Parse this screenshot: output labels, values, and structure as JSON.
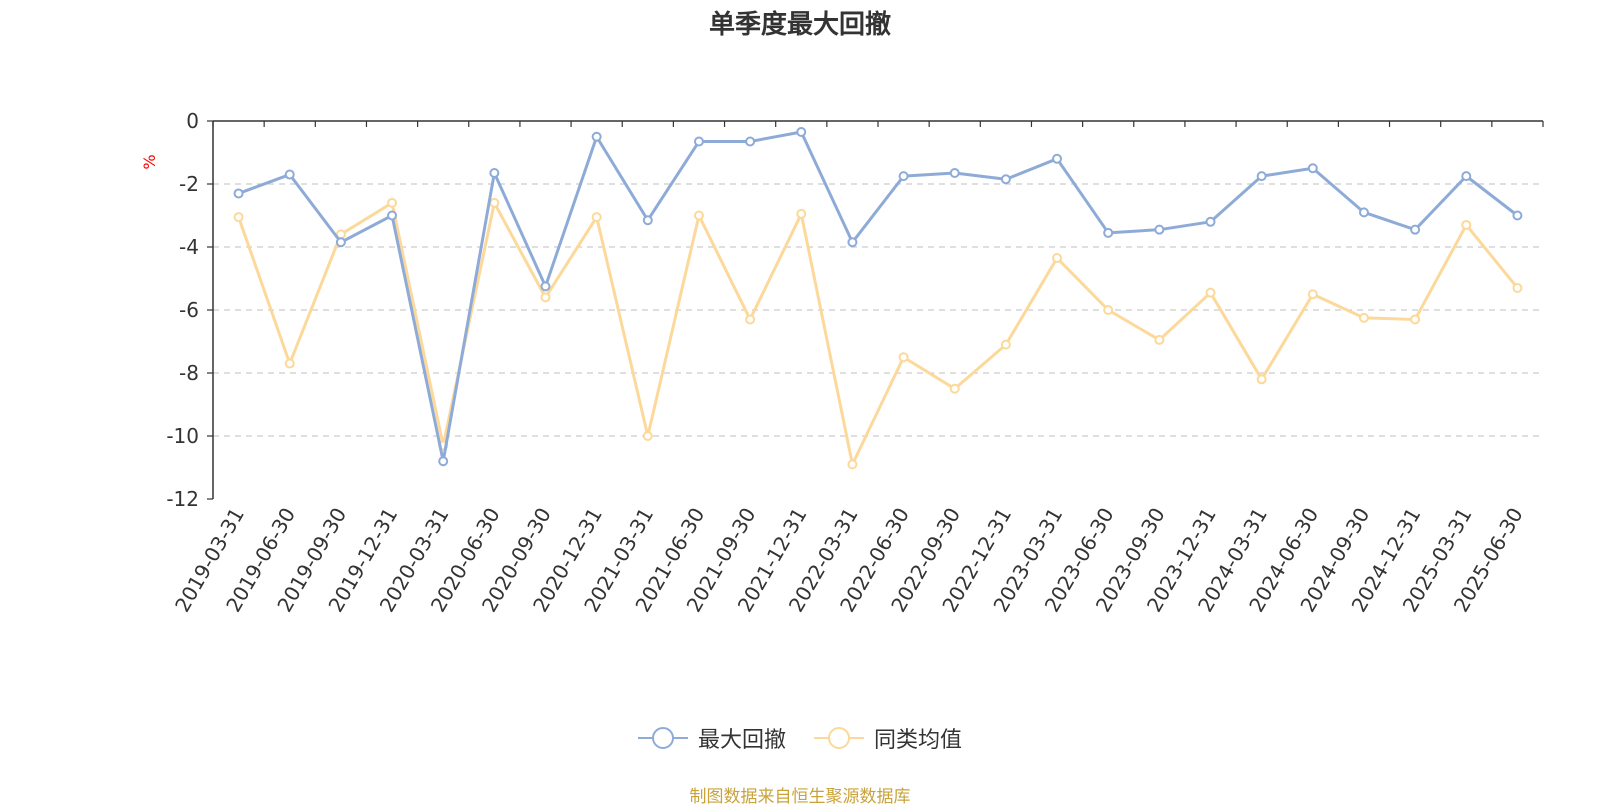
{
  "chart_data": {
    "type": "line",
    "title": "单季度最大回撤",
    "ylabel": "%",
    "ylim": [
      -12,
      0
    ],
    "yticks": [
      0,
      -2,
      -4,
      -6,
      -8,
      -10,
      -12
    ],
    "grid": true,
    "legend_position": "bottom",
    "categories": [
      "2019-03-31",
      "2019-06-30",
      "2019-09-30",
      "2019-12-31",
      "2020-03-31",
      "2020-06-30",
      "2020-09-30",
      "2020-12-31",
      "2021-03-31",
      "2021-06-30",
      "2021-09-30",
      "2021-12-31",
      "2022-03-31",
      "2022-06-30",
      "2022-09-30",
      "2022-12-31",
      "2023-03-31",
      "2023-06-30",
      "2023-09-30",
      "2023-12-31",
      "2024-03-31",
      "2024-06-30",
      "2024-09-30",
      "2024-12-31",
      "2025-03-31",
      "2025-06-30"
    ],
    "series": [
      {
        "name": "最大回撤",
        "color": "#8eabd8",
        "values": [
          -2.3,
          -1.7,
          -3.85,
          -3.0,
          -10.8,
          -1.65,
          -5.25,
          -0.5,
          -3.15,
          -0.65,
          -0.65,
          -0.35,
          -3.85,
          -1.75,
          -1.65,
          -1.85,
          -1.2,
          -3.55,
          -3.45,
          -3.2,
          -1.75,
          -1.5,
          -2.9,
          -3.45,
          -1.75,
          -3.0
        ]
      },
      {
        "name": "同类均值",
        "color": "#fcd99a",
        "values": [
          -3.05,
          -7.7,
          -3.6,
          -2.6,
          -10.3,
          -2.6,
          -5.6,
          -3.05,
          -10.0,
          -3.0,
          -6.3,
          -2.95,
          -10.9,
          -7.5,
          -8.5,
          -7.1,
          -4.35,
          -6.0,
          -6.95,
          -5.45,
          -8.2,
          -5.5,
          -6.25,
          -6.3,
          -3.3,
          -5.3
        ]
      }
    ]
  },
  "source": "制图数据来自恒生聚源数据库"
}
